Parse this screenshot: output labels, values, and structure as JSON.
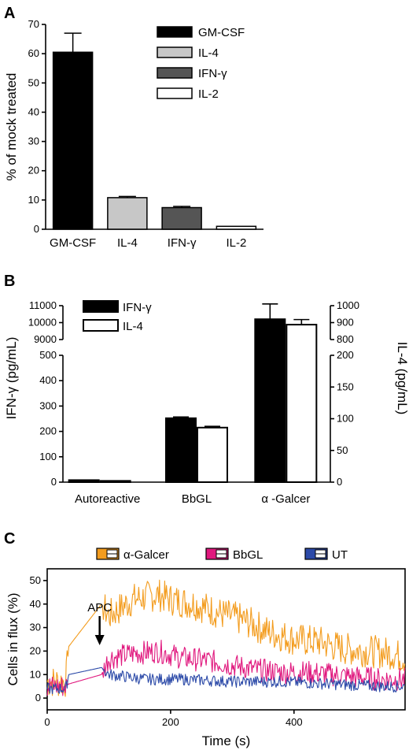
{
  "panels": {
    "a": {
      "letter": "A"
    },
    "b": {
      "letter": "B"
    },
    "c": {
      "letter": "C"
    }
  },
  "chart_data": [
    {
      "type": "bar",
      "panel": "A",
      "ylabel": "% of mock treated",
      "ylim": [
        0,
        70
      ],
      "yticks": [
        0,
        10,
        20,
        30,
        40,
        50,
        60,
        70
      ],
      "categories": [
        "GM-CSF",
        "IL-4",
        "IFN-γ",
        "IL-2"
      ],
      "values": [
        60.5,
        10.8,
        7.4,
        1.0
      ],
      "errors": [
        6.5,
        0.4,
        0.4,
        0.2
      ],
      "colors": [
        "#000000",
        "#c7c7c7",
        "#555555",
        "#ffffff"
      ],
      "legend": [
        "GM-CSF",
        "IL-4",
        "IFN-γ",
        "IL-2"
      ],
      "legend_position": "top-right"
    },
    {
      "type": "bar",
      "panel": "B",
      "ylabel_left": "IFN-γ (pg/mL)",
      "ylabel_right": "IL-4 (pg/mL)",
      "left_axis_lower": {
        "range": [
          0,
          500
        ],
        "ticks": [
          0,
          100,
          200,
          300,
          400,
          500
        ]
      },
      "left_axis_upper": {
        "range": [
          9000,
          11000
        ],
        "ticks": [
          9000,
          10000,
          11000
        ]
      },
      "right_axis_lower": {
        "range": [
          0,
          200
        ],
        "ticks": [
          0,
          50,
          100,
          150,
          200
        ]
      },
      "right_axis_upper": {
        "range": [
          800,
          1000
        ],
        "ticks": [
          800,
          900,
          1000
        ]
      },
      "categories": [
        "Autoreactive",
        "BbGL",
        "α -Galcer"
      ],
      "series": [
        {
          "name": "IFN-γ",
          "axis": "left",
          "values": [
            8,
            252,
            10200
          ],
          "errors": [
            0,
            5,
            900
          ],
          "color": "#000000"
        },
        {
          "name": "IL-4",
          "axis": "right",
          "values": [
            2,
            86,
            888
          ],
          "errors": [
            0,
            2,
            30
          ],
          "color": "#ffffff"
        }
      ],
      "legend_position": "top-left"
    },
    {
      "type": "line",
      "panel": "C",
      "xlabel": "Time (s)",
      "ylabel": "Cells in flux (%)",
      "xlim": [
        0,
        580
      ],
      "ylim": [
        -5,
        55
      ],
      "xticks": [
        0,
        200,
        400
      ],
      "yticks": [
        0,
        10,
        20,
        30,
        40,
        50
      ],
      "annotation": "APC",
      "annotation_x": 85,
      "series": [
        {
          "name": "α-Galcer",
          "color": "#f39c1e",
          "points": [
            [
              0,
              7
            ],
            [
              30,
              7
            ],
            [
              35,
              22
            ],
            [
              88,
              40
            ],
            [
              100,
              35
            ],
            [
              140,
              42
            ],
            [
              180,
              44
            ],
            [
              200,
              42
            ],
            [
              240,
              40
            ],
            [
              280,
              36
            ],
            [
              320,
              33
            ],
            [
              360,
              28
            ],
            [
              400,
              25
            ],
            [
              440,
              24
            ],
            [
              480,
              21
            ],
            [
              520,
              20
            ],
            [
              560,
              19
            ],
            [
              580,
              17
            ]
          ]
        },
        {
          "name": "BbGL",
          "color": "#e0187e",
          "points": [
            [
              0,
              5
            ],
            [
              30,
              5
            ],
            [
              35,
              6
            ],
            [
              88,
              10
            ],
            [
              100,
              17
            ],
            [
              140,
              19
            ],
            [
              180,
              20
            ],
            [
              220,
              17
            ],
            [
              260,
              16
            ],
            [
              300,
              14
            ],
            [
              340,
              12
            ],
            [
              380,
              11
            ],
            [
              420,
              11
            ],
            [
              460,
              10
            ],
            [
              500,
              9
            ],
            [
              540,
              8
            ],
            [
              580,
              8
            ]
          ]
        },
        {
          "name": "UT",
          "color": "#2c4aa8",
          "points": [
            [
              0,
              4
            ],
            [
              30,
              4
            ],
            [
              35,
              10
            ],
            [
              88,
              13
            ],
            [
              100,
              10
            ],
            [
              160,
              8
            ],
            [
              220,
              8
            ],
            [
              300,
              7
            ],
            [
              380,
              7
            ],
            [
              460,
              6
            ],
            [
              540,
              5
            ],
            [
              580,
              5
            ]
          ]
        }
      ],
      "legend_position": "top"
    }
  ]
}
